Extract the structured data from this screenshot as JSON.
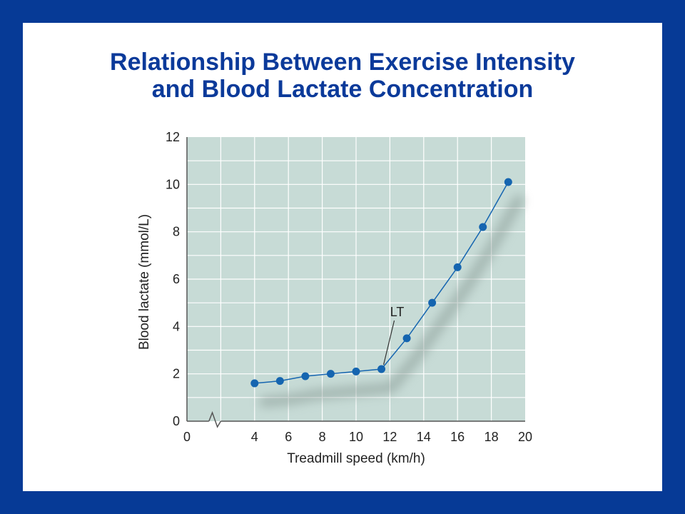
{
  "slide": {
    "title_line1": "Relationship Between Exercise Intensity",
    "title_line2": "and Blood Lactate Concentration"
  },
  "colors": {
    "frame": "#063a96",
    "title": "#0b3a9a",
    "plot_bg": "#c7dbd6",
    "grid": "#ffffff",
    "series": "#1565b0"
  },
  "chart_data": {
    "type": "line",
    "title": "",
    "xlabel": "Treadmill speed (km/h)",
    "ylabel": "Blood lactate (mmol/L)",
    "xlim": [
      0,
      20
    ],
    "ylim": [
      0,
      12
    ],
    "xticks": [
      0,
      4,
      6,
      8,
      10,
      12,
      14,
      16,
      18,
      20
    ],
    "yticks": [
      0,
      2,
      4,
      6,
      8,
      10,
      12
    ],
    "axis_break": "x-axis between 0 and 4",
    "grid": true,
    "series": [
      {
        "name": "",
        "x": [
          4,
          5.5,
          7,
          8.5,
          10,
          11.5,
          13,
          14.5,
          16,
          17.5,
          19
        ],
        "y": [
          1.6,
          1.7,
          1.9,
          2.0,
          2.1,
          2.2,
          3.5,
          5.0,
          6.5,
          8.2,
          10.1
        ]
      }
    ],
    "annotations": [
      {
        "text": "LT",
        "x": 11.5,
        "y": 2.2
      }
    ]
  }
}
